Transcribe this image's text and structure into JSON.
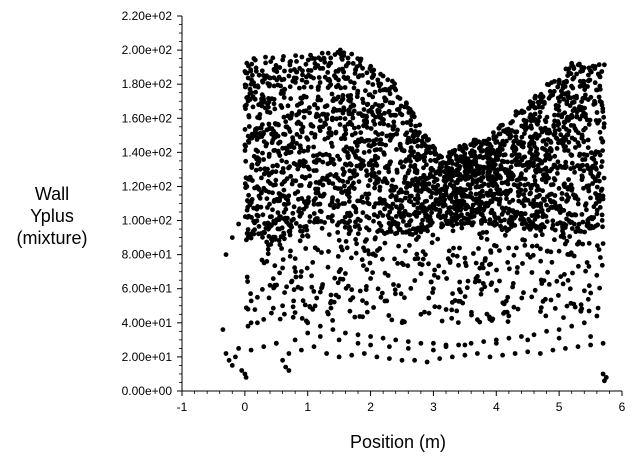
{
  "chart_data": {
    "type": "scatter",
    "xlabel": "Position (m)",
    "ylabel": [
      "Wall",
      "Yplus",
      "(mixture)"
    ],
    "xlim": [
      -1,
      6
    ],
    "ylim": [
      0,
      220
    ],
    "x_ticks": [
      -1,
      0,
      1,
      2,
      3,
      4,
      5,
      6
    ],
    "x_tick_labels": [
      "-1",
      "0",
      "1",
      "2",
      "3",
      "4",
      "5",
      "6"
    ],
    "y_ticks": [
      0,
      20,
      40,
      60,
      80,
      100,
      120,
      140,
      160,
      180,
      200,
      220
    ],
    "y_tick_labels": [
      "0.00e+00",
      "2.00e+01",
      "4.00e+01",
      "6.00e+01",
      "8.00e+01",
      "1.00e+02",
      "1.20e+02",
      "1.40e+02",
      "1.60e+02",
      "1.80e+02",
      "2.00e+02",
      "2.20e+02"
    ],
    "marker_color": "#000000",
    "grid": false,
    "series": [
      {
        "values_description_free": true,
        "x": [
          -0.35,
          -0.3,
          -0.25,
          -0.2,
          -0.15,
          -0.1,
          -0.05,
          0.0,
          0.02,
          0.05,
          0.1,
          0.2,
          0.3,
          0.5,
          0.6,
          0.65,
          0.7,
          0.8,
          1.0,
          1.2,
          1.5,
          1.8,
          2.0,
          2.3,
          2.6,
          3.0,
          3.2,
          3.5,
          4.0,
          4.5,
          5.0,
          5.5,
          5.7,
          5.72,
          5.75,
          0.05,
          0.2,
          0.4,
          0.6,
          0.8,
          1.0,
          1.2,
          1.4,
          1.6,
          1.8,
          2.0,
          2.2,
          2.4,
          2.6,
          2.8,
          3.0,
          3.2,
          3.4,
          3.6,
          3.8,
          4.0,
          4.2,
          4.4,
          4.6,
          4.8,
          5.0,
          5.2,
          5.4,
          5.6,
          0.1,
          0.3,
          0.5,
          0.7,
          0.9,
          1.1,
          1.3,
          1.5,
          1.7,
          1.9,
          2.1,
          2.3,
          2.5,
          2.7,
          2.9,
          3.1,
          3.3,
          3.5,
          3.7,
          3.9,
          4.1,
          4.3,
          4.5,
          4.7,
          4.9,
          5.1,
          5.3,
          5.5,
          5.7,
          -0.3,
          -0.2,
          -0.1,
          1.5,
          2.5,
          3.5,
          4.0,
          4.5,
          5.0,
          2.0,
          3.0,
          4.2,
          2.8,
          3.3,
          1.2,
          0.9
        ],
        "y": [
          36,
          22,
          18,
          15,
          20,
          25,
          12,
          10,
          8,
          38,
          40,
          40,
          42,
          28,
          18,
          14,
          12,
          30,
          34,
          32,
          30,
          28,
          27,
          26,
          25,
          24,
          26,
          27,
          28,
          30,
          31,
          32,
          10,
          6,
          8,
          48,
          55,
          62,
          50,
          46,
          40,
          38,
          36,
          34,
          33,
          32,
          31,
          30,
          29,
          28,
          28,
          27,
          27,
          28,
          29,
          30,
          31,
          32,
          33,
          35,
          36,
          38,
          40,
          44,
          24,
          26,
          28,
          22,
          24,
          26,
          22,
          20,
          21,
          22,
          20,
          19,
          18,
          18,
          17,
          19,
          20,
          21,
          22,
          20,
          21,
          22,
          23,
          22,
          24,
          25,
          26,
          27,
          28,
          80,
          90,
          98,
          70,
          75,
          78,
          85,
          80,
          82,
          66,
          60,
          95,
          45,
          52,
          58,
          60
        ]
      }
    ]
  }
}
